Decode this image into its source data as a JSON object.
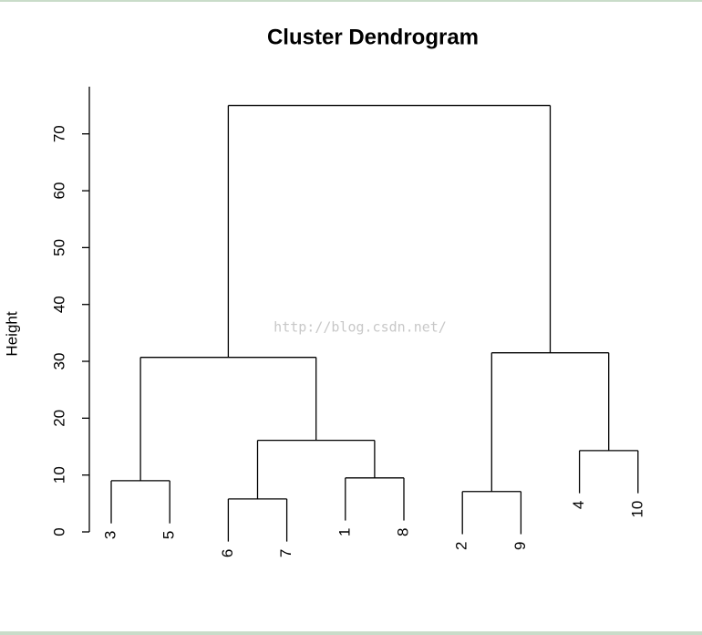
{
  "chart_data": {
    "type": "dendrogram",
    "title": "Cluster Dendrogram",
    "y_label": "Height",
    "watermark": "http://blog.csdn.net/",
    "ylim": [
      -3,
      78.3
    ],
    "yticks": [
      0,
      10,
      20,
      30,
      40,
      50,
      60,
      70
    ],
    "color": "#000000",
    "tree": {
      "height": 75,
      "children": [
        {
          "height": 30.7,
          "children": [
            {
              "height": 9,
              "children": [
                {
                  "label": "3"
                },
                {
                  "label": "5"
                }
              ]
            },
            {
              "height": 16.1,
              "children": [
                {
                  "height": 5.8,
                  "children": [
                    {
                      "label": "6"
                    },
                    {
                      "label": "7"
                    }
                  ]
                },
                {
                  "height": 9.5,
                  "children": [
                    {
                      "label": "1"
                    },
                    {
                      "label": "8"
                    }
                  ]
                }
              ]
            }
          ]
        },
        {
          "height": 31.5,
          "children": [
            {
              "height": 7.1,
              "children": [
                {
                  "label": "2"
                },
                {
                  "label": "9"
                }
              ]
            },
            {
              "height": 14.3,
              "children": [
                {
                  "label": "4"
                },
                {
                  "label": "10"
                }
              ]
            }
          ]
        }
      ]
    }
  }
}
